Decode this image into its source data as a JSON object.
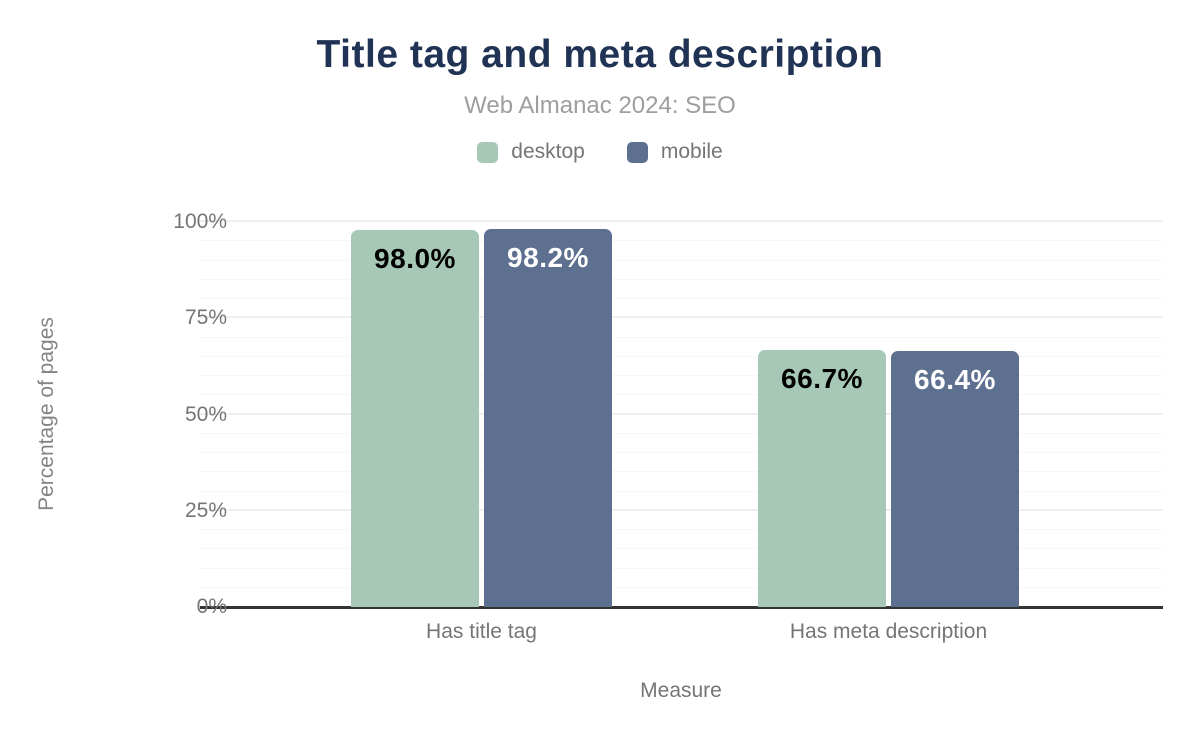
{
  "title": "Title tag and meta description",
  "subtitle": "Web Almanac 2024: SEO",
  "colors": {
    "title_navy": "#213354",
    "subtitle_gray": "#9e9e9e",
    "axis_text_gray": "#757575",
    "desktop_green": "#a8c8b7",
    "mobile_blue": "#5e7090",
    "baseline_dark": "#333333",
    "gridline_minor": "#f7f7f7",
    "gridline_major": "#efefef"
  },
  "chart_data": {
    "type": "bar",
    "categories": [
      "Has title tag",
      "Has meta description"
    ],
    "series": [
      {
        "name": "desktop",
        "values": [
          98.0,
          66.7
        ],
        "labels": [
          "98.0%",
          "66.7%"
        ],
        "color": "#a8c8b7",
        "label_color": "#000000"
      },
      {
        "name": "mobile",
        "values": [
          98.2,
          66.4
        ],
        "labels": [
          "98.2%",
          "66.4%"
        ],
        "color": "#5e7090",
        "label_color": "#ffffff"
      }
    ],
    "title": "Title tag and meta description",
    "subtitle": "Web Almanac 2024: SEO",
    "xlabel": "Measure",
    "ylabel": "Percentage of pages",
    "ylim": [
      0,
      100
    ],
    "yticks": [
      {
        "value": 0,
        "label": "0%"
      },
      {
        "value": 25,
        "label": "25%"
      },
      {
        "value": 50,
        "label": "50%"
      },
      {
        "value": 75,
        "label": "75%"
      },
      {
        "value": 100,
        "label": "100%"
      }
    ],
    "grid": {
      "horizontal": true,
      "minor_step": 5,
      "major_step": 25
    },
    "legend_position": "top"
  }
}
